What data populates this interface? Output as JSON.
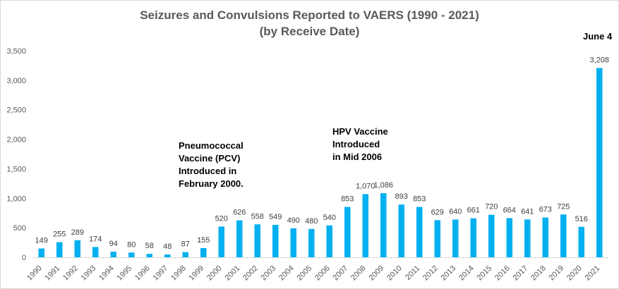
{
  "chart_data": {
    "type": "bar",
    "title": "Seizures and Convulsions Reported to VAERS (1990 - 2021)",
    "subtitle": "(by Receive Date)",
    "xlabel": "",
    "ylabel": "",
    "ylim": [
      0,
      3500
    ],
    "yticks": [
      0,
      500,
      1000,
      1500,
      2000,
      2500,
      3000,
      3500
    ],
    "ytick_labels": [
      "0",
      "500",
      "1,000",
      "1,500",
      "2,000",
      "2,500",
      "3,000",
      "3,500"
    ],
    "grid": false,
    "legend": "none",
    "bar_color": "#00b0f0",
    "categories": [
      "1990",
      "1991",
      "1992",
      "1993",
      "1994",
      "1995",
      "1996",
      "1997",
      "1998",
      "1999",
      "2000",
      "2001",
      "2002",
      "2003",
      "2004",
      "2005",
      "2006",
      "2007",
      "2008",
      "2009",
      "2010",
      "2011",
      "2012",
      "2013",
      "2014",
      "2015",
      "2016",
      "2017",
      "2018",
      "2019",
      "2020",
      "2021"
    ],
    "values": [
      149,
      255,
      289,
      174,
      94,
      80,
      58,
      48,
      87,
      155,
      520,
      626,
      558,
      549,
      490,
      480,
      540,
      853,
      1070,
      1086,
      893,
      853,
      629,
      640,
      661,
      720,
      664,
      641,
      673,
      725,
      516,
      3208
    ],
    "value_labels": [
      "149",
      "255",
      "289",
      "174",
      "94",
      "80",
      "58",
      "48",
      "87",
      "155",
      "520",
      "626",
      "558",
      "549",
      "490",
      "480",
      "540",
      "853",
      "1,070",
      "1,086",
      "893",
      "853",
      "629",
      "640",
      "661",
      "720",
      "664",
      "641",
      "673",
      "725",
      "516",
      "3,208"
    ],
    "annotations": {
      "pcv": "Pneumococcal\nVaccine (PCV)\nIntroduced in\nFebruary 2000.",
      "hpv": "HPV Vaccine\nIntroduced\nin Mid 2006",
      "june": "June 4"
    }
  }
}
